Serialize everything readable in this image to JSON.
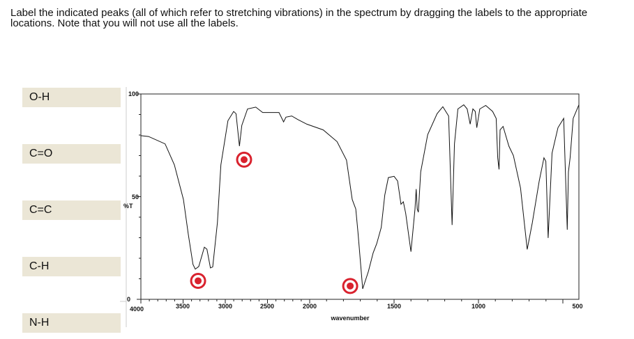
{
  "instructions": "Label the indicated peaks (all of which refer to stretching vibrations) in the spectrum by dragging the labels to the appropriate locations. Note that you will not use all the labels.",
  "labels": [
    "O-H",
    "C=O",
    "C=C",
    "C-H",
    "N-H"
  ],
  "label_color": "#ebe6d6",
  "target_color": "#d9222e",
  "chart_data": {
    "type": "line",
    "xlabel": "wavenumber",
    "ylabel": "%T",
    "xlim": [
      4000,
      405
    ],
    "x_scale_note": "axis scale doubles below 2000",
    "ylim": [
      0,
      100
    ],
    "x_ticks": [
      4000,
      3500,
      3000,
      2500,
      2000,
      1500,
      1000,
      500
    ],
    "y_ticks": [
      0,
      50,
      100
    ],
    "grid": false,
    "series": [
      {
        "x": [
          4000,
          3909,
          3713,
          3603,
          3496,
          3438,
          3383,
          3355,
          3314,
          3248,
          3217,
          3176,
          3149,
          3093,
          3052,
          2969,
          2901,
          2873,
          2832,
          2804,
          2736,
          2639,
          2557,
          2364,
          2309,
          2281,
          2212,
          2143,
          2033,
          1920,
          1838,
          1782,
          1748,
          1727,
          1714,
          1686,
          1652,
          1624,
          1603,
          1576,
          1555,
          1534,
          1500,
          1479,
          1459,
          1445,
          1431,
          1400,
          1376,
          1369,
          1363,
          1356,
          1342,
          1301,
          1245,
          1211,
          1177,
          1156,
          1142,
          1122,
          1087,
          1067,
          1049,
          1033,
          1019,
          1010,
          992,
          957,
          916,
          895,
          886,
          878,
          872,
          854,
          820,
          793,
          751,
          711,
          681,
          640,
          612,
          601,
          587,
          564,
          529,
          495,
          474,
          467,
          457,
          439,
          405
        ],
        "y": [
          79.7,
          79.3,
          75.7,
          65.5,
          48.6,
          31.6,
          17,
          14.7,
          16,
          25.4,
          24.4,
          15.3,
          15.8,
          37.3,
          65.5,
          87,
          91.5,
          90.4,
          74.6,
          84.7,
          92.7,
          93.6,
          91,
          91,
          86.4,
          88.7,
          89.3,
          87.6,
          85.3,
          82.5,
          76.8,
          67.8,
          48.6,
          44,
          32.8,
          5.1,
          13.6,
          22.6,
          27.1,
          35,
          50.8,
          59.3,
          59.9,
          57.6,
          46.3,
          47.5,
          41.8,
          23.2,
          44,
          53.7,
          44,
          42.4,
          62.1,
          80.2,
          90.4,
          93.8,
          89.3,
          36.2,
          75.7,
          92.7,
          94.7,
          92.7,
          85.3,
          92.7,
          91.5,
          83.6,
          92.7,
          94.4,
          91.5,
          88.1,
          68.9,
          63.3,
          82.5,
          84.2,
          74.6,
          70,
          54.2,
          24.3,
          37.3,
          57.6,
          68.9,
          67.2,
          29.9,
          71.2,
          83.6,
          88.1,
          33.9,
          62.1,
          68.9,
          88.1,
          94.7
        ]
      }
    ],
    "annotations": [
      {
        "type": "target",
        "x": 3322,
        "y": 9
      },
      {
        "type": "target",
        "x": 2777,
        "y": 68
      },
      {
        "type": "target",
        "x": 1760,
        "y": 6.5
      }
    ]
  }
}
